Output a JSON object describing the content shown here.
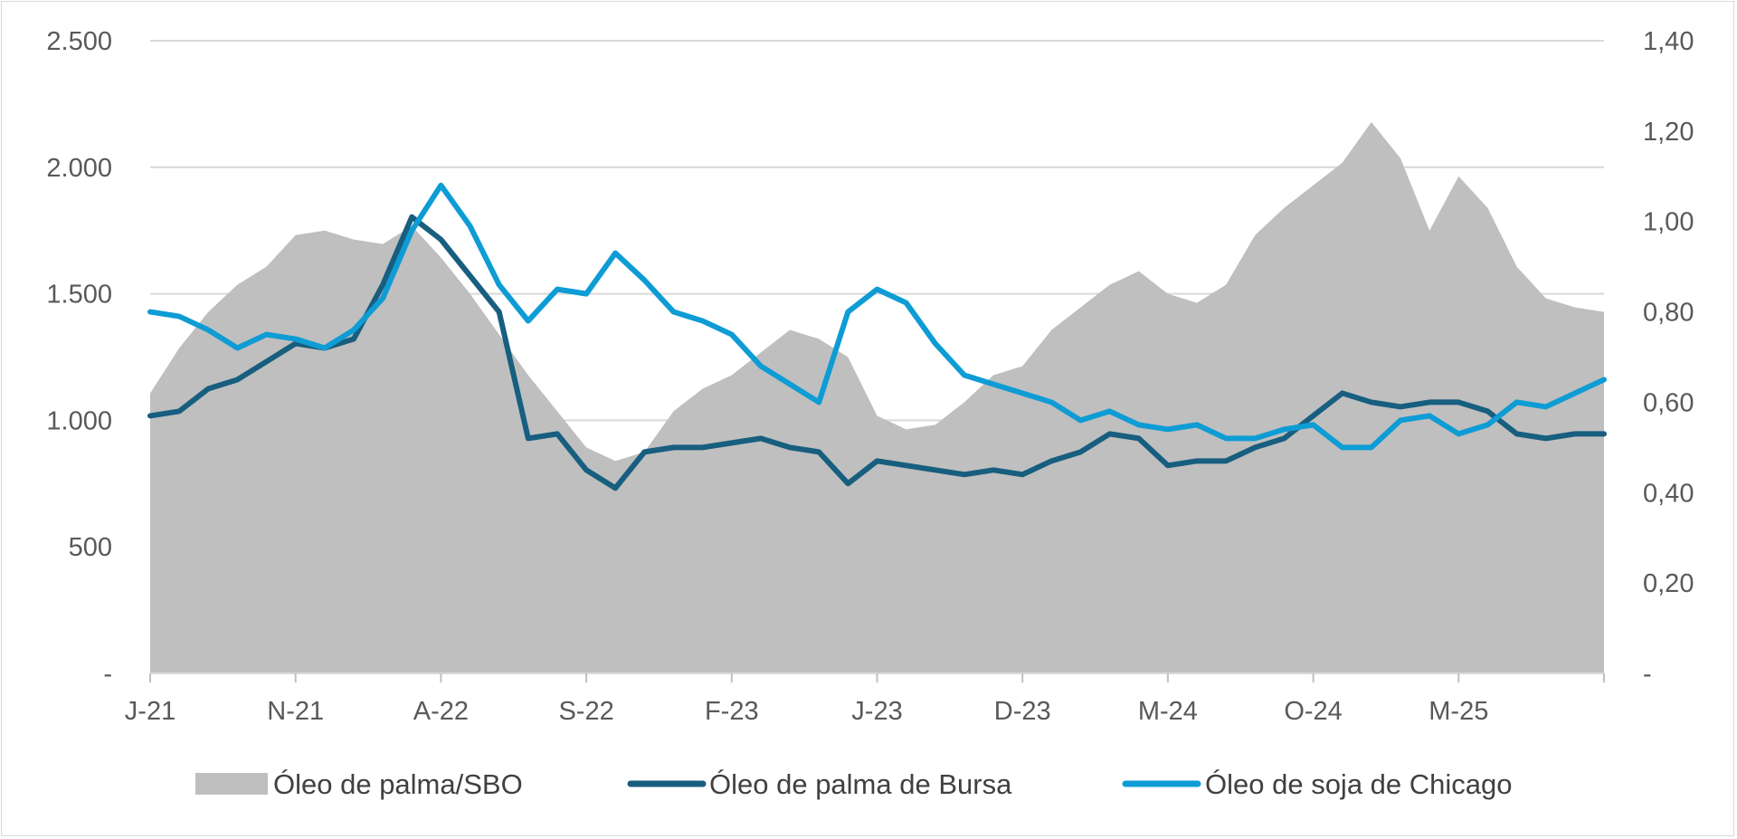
{
  "chart_data": {
    "type": "area",
    "title": "",
    "x_tick_labels": [
      "J-21",
      "N-21",
      "A-22",
      "S-22",
      "F-23",
      "J-23",
      "D-23",
      "M-24",
      "O-24",
      "M-25"
    ],
    "x_tick_dates": [
      "2021-06",
      "2021-11",
      "2022-04",
      "2022-09",
      "2023-02",
      "2023-07",
      "2023-12",
      "2024-05",
      "2024-10",
      "2025-03"
    ],
    "x_range": [
      "2021-06",
      "2025-08"
    ],
    "y_left": {
      "ylim": [
        0,
        2500
      ],
      "ticks": [
        "-",
        "500",
        "1.000",
        "1.500",
        "2.000",
        "2.500"
      ],
      "tick_values": [
        0,
        500,
        1000,
        1500,
        2000,
        2500
      ]
    },
    "y_right": {
      "ylim": [
        0,
        1.4
      ],
      "ticks": [
        "-",
        "0,20",
        "0,40",
        "0,60",
        "0,80",
        "1,00",
        "1,20",
        "1,40"
      ],
      "tick_values": [
        0,
        0.2,
        0.4,
        0.6,
        0.8,
        1.0,
        1.2,
        1.4
      ]
    },
    "grid": true,
    "legend_position": "bottom",
    "series": [
      {
        "name": "Óleo de palma/SBO",
        "type": "area",
        "axis": "right",
        "color": "#bfbfbf",
        "x": [
          "2021-06",
          "2021-07",
          "2021-08",
          "2021-09",
          "2021-10",
          "2021-11",
          "2021-12",
          "2022-01",
          "2022-02",
          "2022-03",
          "2022-04",
          "2022-05",
          "2022-06",
          "2022-07",
          "2022-08",
          "2022-09",
          "2022-10",
          "2022-11",
          "2022-12",
          "2023-01",
          "2023-02",
          "2023-03",
          "2023-04",
          "2023-05",
          "2023-06",
          "2023-07",
          "2023-08",
          "2023-09",
          "2023-10",
          "2023-11",
          "2023-12",
          "2024-01",
          "2024-02",
          "2024-03",
          "2024-04",
          "2024-05",
          "2024-06",
          "2024-07",
          "2024-08",
          "2024-09",
          "2024-10",
          "2024-11",
          "2024-12",
          "2025-01",
          "2025-02",
          "2025-03",
          "2025-04",
          "2025-05",
          "2025-06",
          "2025-07",
          "2025-08"
        ],
        "y": [
          0.62,
          0.72,
          0.8,
          0.86,
          0.9,
          0.97,
          0.98,
          0.96,
          0.95,
          0.99,
          0.92,
          0.84,
          0.75,
          0.66,
          0.58,
          0.5,
          0.47,
          0.49,
          0.58,
          0.63,
          0.66,
          0.71,
          0.76,
          0.74,
          0.7,
          0.57,
          0.54,
          0.55,
          0.6,
          0.66,
          0.68,
          0.76,
          0.81,
          0.86,
          0.89,
          0.84,
          0.82,
          0.86,
          0.97,
          1.03,
          1.08,
          1.13,
          1.22,
          1.14,
          0.98,
          1.1,
          1.03,
          0.9,
          0.83,
          0.81,
          0.8
        ]
      },
      {
        "name": "Óleo de palma de Bursa",
        "type": "line",
        "axis": "right",
        "color": "#175e7f",
        "x": [
          "2021-06",
          "2021-07",
          "2021-08",
          "2021-09",
          "2021-10",
          "2021-11",
          "2021-12",
          "2022-01",
          "2022-02",
          "2022-03",
          "2022-04",
          "2022-05",
          "2022-06",
          "2022-07",
          "2022-08",
          "2022-09",
          "2022-10",
          "2022-11",
          "2022-12",
          "2023-01",
          "2023-02",
          "2023-03",
          "2023-04",
          "2023-05",
          "2023-06",
          "2023-07",
          "2023-08",
          "2023-09",
          "2023-10",
          "2023-11",
          "2023-12",
          "2024-01",
          "2024-02",
          "2024-03",
          "2024-04",
          "2024-05",
          "2024-06",
          "2024-07",
          "2024-08",
          "2024-09",
          "2024-10",
          "2024-11",
          "2024-12",
          "2025-01",
          "2025-02",
          "2025-03",
          "2025-04",
          "2025-05",
          "2025-06",
          "2025-07",
          "2025-08"
        ],
        "y": [
          0.57,
          0.58,
          0.63,
          0.65,
          0.69,
          0.73,
          0.72,
          0.74,
          0.86,
          1.01,
          0.96,
          0.88,
          0.8,
          0.52,
          0.53,
          0.45,
          0.41,
          0.49,
          0.5,
          0.5,
          0.51,
          0.52,
          0.5,
          0.49,
          0.42,
          0.47,
          0.46,
          0.45,
          0.44,
          0.45,
          0.44,
          0.47,
          0.49,
          0.53,
          0.52,
          0.46,
          0.47,
          0.47,
          0.5,
          0.52,
          0.57,
          0.62,
          0.6,
          0.59,
          0.6,
          0.6,
          0.58,
          0.53,
          0.52,
          0.53,
          0.53
        ]
      },
      {
        "name": "Óleo de soja de Chicago",
        "type": "line",
        "axis": "right",
        "color": "#0e9cd5",
        "x": [
          "2021-06",
          "2021-07",
          "2021-08",
          "2021-09",
          "2021-10",
          "2021-11",
          "2021-12",
          "2022-01",
          "2022-02",
          "2022-03",
          "2022-04",
          "2022-05",
          "2022-06",
          "2022-07",
          "2022-08",
          "2022-09",
          "2022-10",
          "2022-11",
          "2022-12",
          "2023-01",
          "2023-02",
          "2023-03",
          "2023-04",
          "2023-05",
          "2023-06",
          "2023-07",
          "2023-08",
          "2023-09",
          "2023-10",
          "2023-11",
          "2023-12",
          "2024-01",
          "2024-02",
          "2024-03",
          "2024-04",
          "2024-05",
          "2024-06",
          "2024-07",
          "2024-08",
          "2024-09",
          "2024-10",
          "2024-11",
          "2024-12",
          "2025-01",
          "2025-02",
          "2025-03",
          "2025-04",
          "2025-05",
          "2025-06",
          "2025-07",
          "2025-08"
        ],
        "y": [
          0.8,
          0.79,
          0.76,
          0.72,
          0.75,
          0.74,
          0.72,
          0.76,
          0.83,
          0.98,
          1.08,
          0.99,
          0.86,
          0.78,
          0.85,
          0.84,
          0.93,
          0.87,
          0.8,
          0.78,
          0.75,
          0.68,
          0.64,
          0.6,
          0.8,
          0.85,
          0.82,
          0.73,
          0.66,
          0.64,
          0.62,
          0.6,
          0.56,
          0.58,
          0.55,
          0.54,
          0.55,
          0.52,
          0.52,
          0.54,
          0.55,
          0.5,
          0.5,
          0.56,
          0.57,
          0.53,
          0.55,
          0.6,
          0.59,
          0.62,
          0.65
        ]
      }
    ]
  }
}
